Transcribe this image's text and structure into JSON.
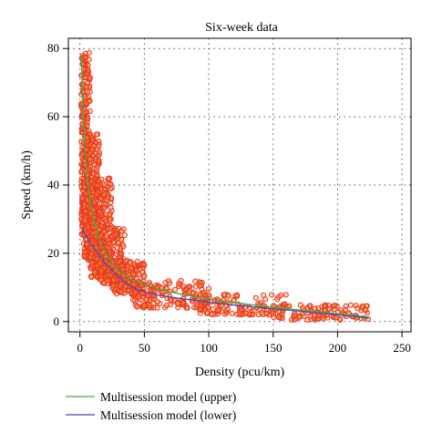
{
  "chart_data": {
    "type": "scatter",
    "title": "Six-week data",
    "xlabel": "Density (pcu/km)",
    "ylabel": "Speed (km/h)",
    "xlim": [
      -9,
      257
    ],
    "ylim": [
      -3,
      83
    ],
    "x_ticks": [
      0,
      50,
      100,
      150,
      200,
      250
    ],
    "y_ticks": [
      0,
      20,
      40,
      60,
      80
    ],
    "grid": true,
    "legend_position": "bottom",
    "colors": {
      "points_stroke": "#e8342a",
      "points_fill": "#f5a623",
      "upper_line": "#3cb043",
      "lower_line": "#4a4ab0",
      "grid": "#555555"
    },
    "series": [
      {
        "name": "Multisession model (upper)",
        "kind": "line",
        "x": [
          1,
          2,
          3,
          4,
          5,
          6,
          8,
          10,
          12,
          15,
          18,
          20,
          25,
          30,
          35,
          40,
          50,
          60,
          75,
          100,
          125,
          150,
          175,
          200,
          215,
          224
        ],
        "y": [
          78,
          66,
          57,
          50,
          45,
          41,
          35,
          31,
          28,
          24.5,
          21.5,
          20,
          17,
          15,
          13.5,
          12.3,
          10.8,
          9.6,
          8.3,
          6.6,
          5.3,
          4.2,
          3.2,
          2.3,
          1.7,
          1.2
        ]
      },
      {
        "name": "Multisession model (lower)",
        "kind": "line",
        "x": [
          2,
          5,
          10,
          15,
          20,
          25,
          30,
          35,
          40,
          45,
          50,
          60,
          75,
          100,
          125,
          150,
          175,
          200,
          215,
          224
        ],
        "y": [
          27,
          25,
          22,
          19.5,
          17,
          15,
          13,
          11.5,
          10.2,
          9.3,
          8.7,
          7.8,
          6.9,
          5.6,
          4.6,
          3.7,
          2.9,
          2,
          1.4,
          0.9
        ]
      },
      {
        "name": "",
        "kind": "points",
        "clusters": [
          {
            "x": [
              1,
              8
            ],
            "y": [
              25,
              79
            ],
            "n": 280
          },
          {
            "x": [
              3,
              15
            ],
            "y": [
              18,
              55
            ],
            "n": 320
          },
          {
            "x": [
              8,
              25
            ],
            "y": [
              13,
              42
            ],
            "n": 260
          },
          {
            "x": [
              15,
              35
            ],
            "y": [
              11,
              28
            ],
            "n": 200
          },
          {
            "x": [
              25,
              50
            ],
            "y": [
              8,
              18
            ],
            "n": 160
          },
          {
            "x": [
              40,
              100
            ],
            "y": [
              4,
              12
            ],
            "n": 160
          },
          {
            "x": [
              90,
              160
            ],
            "y": [
              2,
              8
            ],
            "n": 120
          },
          {
            "x": [
              150,
              224
            ],
            "y": [
              0.5,
              5
            ],
            "n": 110
          }
        ]
      }
    ]
  }
}
